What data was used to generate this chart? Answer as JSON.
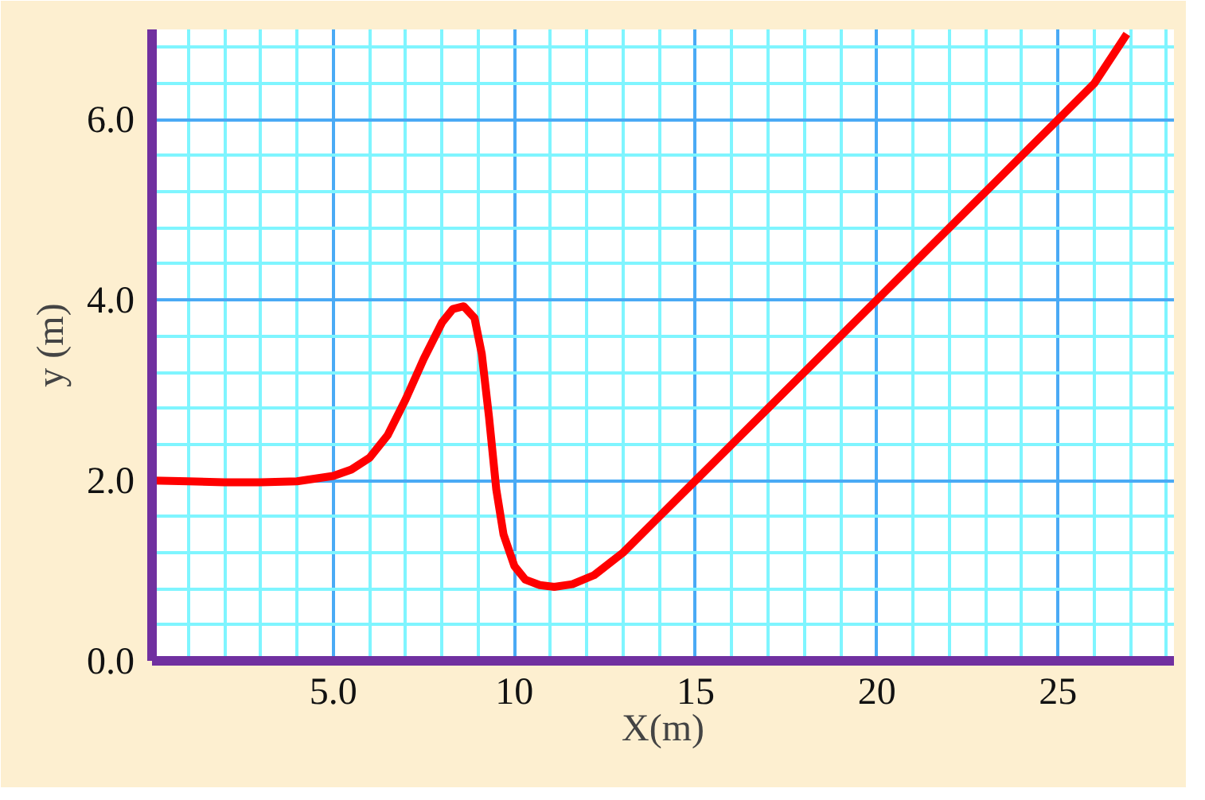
{
  "chart_data": {
    "type": "line",
    "xlabel": "X(m)",
    "ylabel": "y (m)",
    "x": [
      0,
      1,
      2,
      3,
      4,
      5,
      5.5,
      6,
      6.5,
      7,
      7.5,
      8,
      8.3,
      8.6,
      8.9,
      9.1,
      9.3,
      9.5,
      9.7,
      10,
      10.3,
      10.7,
      11.1,
      11.6,
      12.2,
      13,
      14,
      15,
      16,
      17,
      18,
      19,
      20,
      21,
      22,
      23,
      24,
      25,
      26,
      26.9
    ],
    "series": [
      {
        "color": "#ff0000",
        "values": [
          2.0,
          1.99,
          1.98,
          1.98,
          1.99,
          2.05,
          2.12,
          2.25,
          2.5,
          2.9,
          3.35,
          3.75,
          3.9,
          3.93,
          3.8,
          3.4,
          2.7,
          1.9,
          1.4,
          1.05,
          0.9,
          0.84,
          0.82,
          0.85,
          0.95,
          1.2,
          1.6,
          2.0,
          2.4,
          2.8,
          3.2,
          3.6,
          4.0,
          4.4,
          4.8,
          5.2,
          5.6,
          6.0,
          6.4,
          6.95
        ]
      }
    ],
    "xlim": [
      0,
      28.2
    ],
    "ylim": [
      0,
      7.0
    ],
    "xticks": [
      {
        "value": 1,
        "label": null
      },
      {
        "value": 2,
        "label": null
      },
      {
        "value": 3,
        "label": null
      },
      {
        "value": 4,
        "label": null
      },
      {
        "value": 5,
        "label": "5.0"
      },
      {
        "value": 6,
        "label": null
      },
      {
        "value": 7,
        "label": null
      },
      {
        "value": 8,
        "label": null
      },
      {
        "value": 9,
        "label": null
      },
      10,
      {
        "value": 11,
        "label": null
      },
      {
        "value": 12,
        "label": null
      },
      {
        "value": 13,
        "label": null
      },
      {
        "value": 14,
        "label": null
      },
      15,
      {
        "value": 16,
        "label": null
      },
      {
        "value": 17,
        "label": null
      },
      {
        "value": 18,
        "label": null
      },
      {
        "value": 19,
        "label": null
      },
      20,
      {
        "value": 21,
        "label": null
      },
      {
        "value": 22,
        "label": null
      },
      {
        "value": 23,
        "label": null
      },
      {
        "value": 24,
        "label": null
      },
      25,
      {
        "value": 26,
        "label": null
      },
      {
        "value": 27,
        "label": null
      },
      {
        "value": 28,
        "label": null
      }
    ],
    "yticks": [
      {
        "value": 0,
        "label": "0.0"
      },
      {
        "value": 0.4,
        "label": null
      },
      {
        "value": 0.8,
        "label": null
      },
      {
        "value": 1.2,
        "label": null
      },
      {
        "value": 1.6,
        "label": null
      },
      {
        "value": 2,
        "label": "2.0"
      },
      {
        "value": 2.4,
        "label": null
      },
      {
        "value": 2.8,
        "label": null
      },
      {
        "value": 3.2,
        "label": null
      },
      {
        "value": 3.6,
        "label": null
      },
      {
        "value": 4,
        "label": "4.0"
      },
      {
        "value": 4.4,
        "label": null
      },
      {
        "value": 4.8,
        "label": null
      },
      {
        "value": 5.2,
        "label": null
      },
      {
        "value": 5.6,
        "label": null
      },
      {
        "value": 6,
        "label": "6.0"
      },
      {
        "value": 6.4,
        "label": null
      },
      {
        "value": 6.8,
        "label": null
      }
    ],
    "grid": true,
    "line_style": "solid",
    "marker": "none"
  }
}
